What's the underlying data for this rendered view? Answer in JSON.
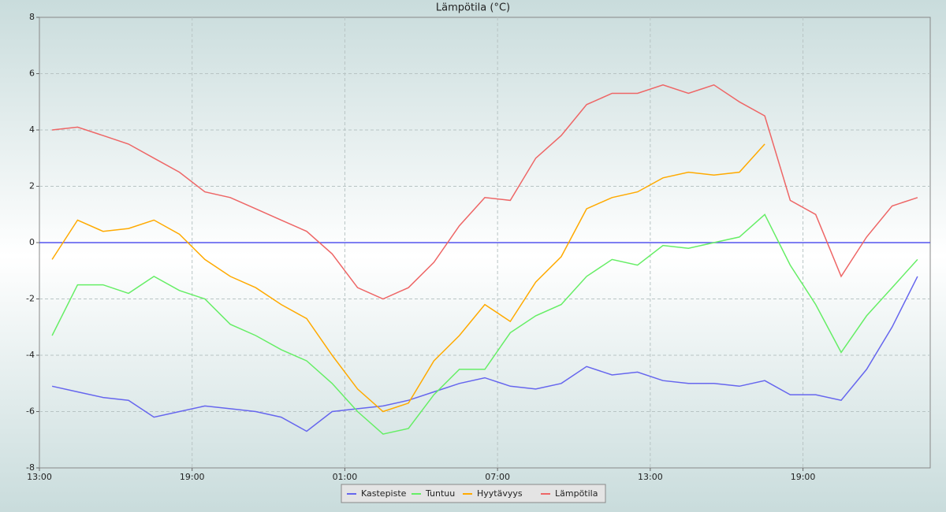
{
  "chart_data": {
    "type": "line",
    "title": "Lämpötila (°C)",
    "x": [
      0.5,
      1.5,
      2.5,
      3.5,
      4.5,
      5.5,
      6.5,
      7.5,
      8.5,
      9.5,
      10.5,
      11.5,
      12.5,
      13.5,
      14.5,
      15.5,
      16.5,
      17.5,
      18.5,
      19.5,
      20.5,
      21.5,
      22.5,
      23.5,
      24.5,
      25.5,
      26.5,
      27.5,
      28.5,
      29.5,
      30.5,
      31.5,
      32.5,
      33.5,
      34.5
    ],
    "series": [
      {
        "name": "Kastepiste",
        "color": "#6666ee",
        "values": [
          -5.1,
          -5.3,
          -5.5,
          -5.6,
          -6.2,
          -6.0,
          -5.8,
          -5.9,
          -6.0,
          -6.2,
          -6.7,
          -6.0,
          -5.9,
          -5.8,
          -5.6,
          -5.3,
          -5.0,
          -4.8,
          -5.1,
          -5.2,
          -5.0,
          -4.4,
          -4.7,
          -4.6,
          -4.9,
          -5.0,
          -5.0,
          -5.1,
          -4.9,
          -5.4,
          -5.4,
          -5.6,
          -4.5,
          -3.0,
          -1.2
        ]
      },
      {
        "name": "Tuntuu",
        "color": "#66ee66",
        "values": [
          -3.3,
          -1.5,
          -1.5,
          -1.8,
          -1.2,
          -1.7,
          -2.0,
          -2.9,
          -3.3,
          -3.8,
          -4.2,
          -5.0,
          -6.0,
          -6.8,
          -6.6,
          -5.4,
          -4.5,
          -4.5,
          -3.2,
          -2.6,
          -2.2,
          -1.2,
          -0.6,
          -0.8,
          -0.1,
          -0.2,
          0.0,
          0.2,
          1.0,
          -0.8,
          -2.2,
          -3.9,
          -2.6,
          -1.6,
          -0.6
        ]
      },
      {
        "name": "Hyytävyys",
        "color": "#ffaa00",
        "values": [
          -0.6,
          0.8,
          0.4,
          0.5,
          0.8,
          0.3,
          -0.6,
          -1.2,
          -1.6,
          -2.2,
          -2.7,
          -4.0,
          -5.2,
          -6.0,
          -5.7,
          -4.2,
          -3.3,
          -2.2,
          -2.8,
          -1.4,
          -0.5,
          1.2,
          1.6,
          1.8,
          2.3,
          2.5,
          2.4,
          2.5,
          3.5,
          null,
          null,
          null,
          null,
          null,
          null
        ]
      },
      {
        "name": "Lämpötila",
        "color": "#ee6666",
        "values": [
          4.0,
          4.1,
          3.8,
          3.5,
          3.0,
          2.5,
          1.8,
          1.6,
          1.2,
          0.8,
          0.4,
          -0.4,
          -1.6,
          -2.0,
          -1.6,
          -0.7,
          0.6,
          1.6,
          1.5,
          3.0,
          3.8,
          4.9,
          5.3,
          5.3,
          5.6,
          5.3,
          5.6,
          5.0,
          4.5,
          1.5,
          1.0,
          -1.2,
          0.2,
          1.3,
          1.6
        ]
      }
    ],
    "xlim": [
      0,
      35
    ],
    "xticks": [
      {
        "value": 0,
        "label": "13:00"
      },
      {
        "value": 6,
        "label": "19:00"
      },
      {
        "value": 12,
        "label": "01:00"
      },
      {
        "value": 18,
        "label": "07:00"
      },
      {
        "value": 24,
        "label": "13:00"
      },
      {
        "value": 30,
        "label": "19:00"
      }
    ],
    "ylim": [
      -8,
      8
    ],
    "yticks": [
      -8,
      -6,
      -4,
      -2,
      0,
      2,
      4,
      6,
      8
    ],
    "grid": true
  }
}
